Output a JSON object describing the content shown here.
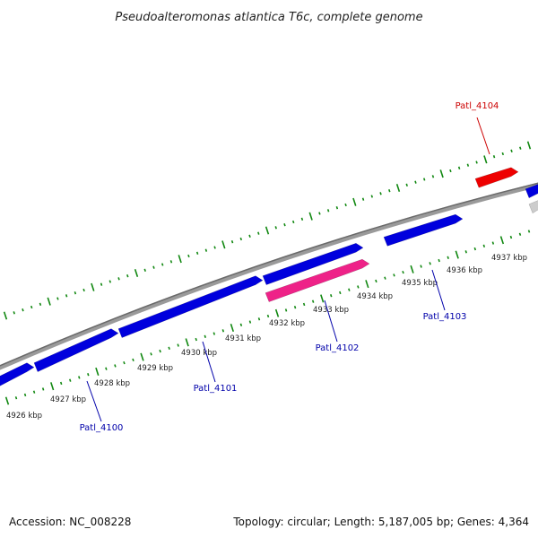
{
  "title": "Pseudoalteromonas atlantica T6c, complete genome",
  "footer": {
    "accession": "Accession: NC_008228",
    "summary": "Topology: circular; Length: 5,187,005 bp; Genes: 4,364"
  },
  "colors": {
    "forward_gene": "#0000dd",
    "reverse_gene": "#0000dd",
    "highlight_gene": "#ee2288",
    "red_gene": "#ee0000",
    "other_gene": "#cccccc",
    "backbone": "#808080",
    "tick": "#118811",
    "label_blue": "#0000aa",
    "label_red": "#cc0000"
  },
  "kbp_labels": [
    "4926 kbp",
    "4927 kbp",
    "4928 kbp",
    "4929 kbp",
    "4930 kbp",
    "4931 kbp",
    "4932 kbp",
    "4933 kbp",
    "4934 kbp",
    "4935 kbp",
    "4936 kbp",
    "4937 kbp"
  ],
  "gene_labels": [
    {
      "text": "Patl_4100",
      "color": "label_blue"
    },
    {
      "text": "Patl_4101",
      "color": "label_blue"
    },
    {
      "text": "Patl_4102",
      "color": "label_blue"
    },
    {
      "text": "Patl_4103",
      "color": "label_blue"
    },
    {
      "text": "Patl_4104",
      "color": "label_red"
    }
  ]
}
